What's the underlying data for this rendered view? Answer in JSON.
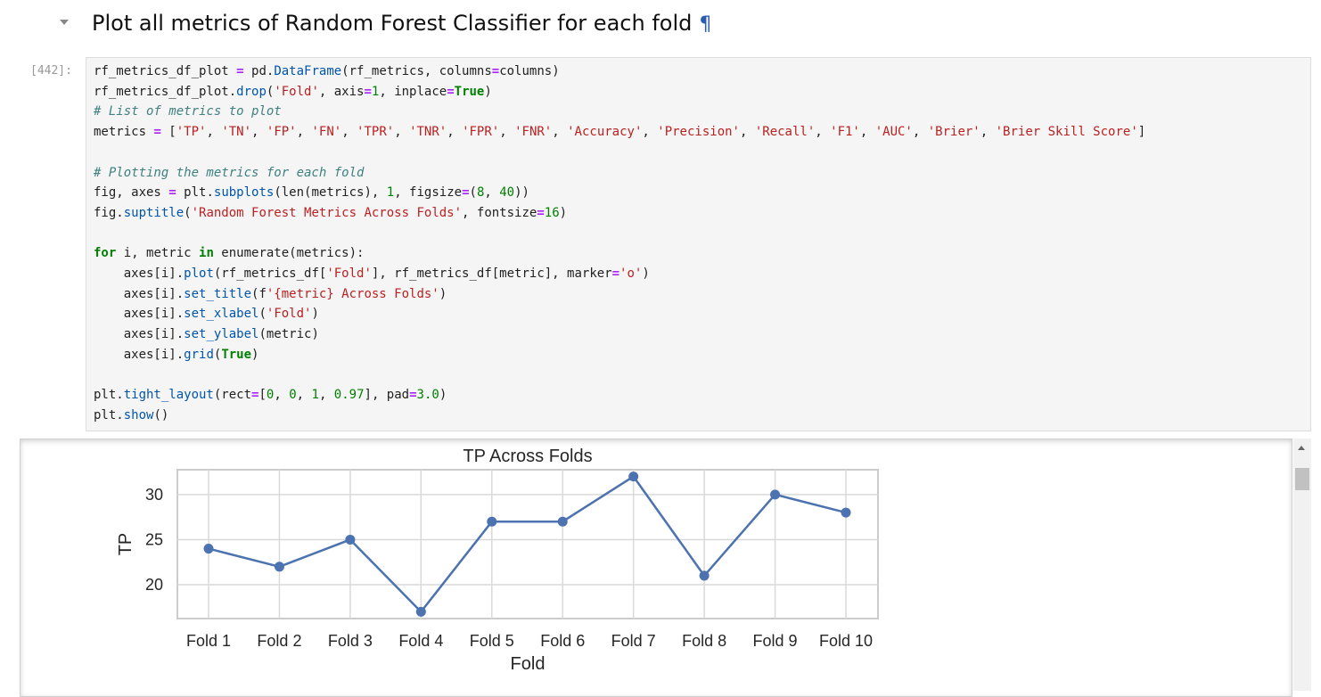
{
  "cell_heading": {
    "title": "Plot all metrics of Random Forest Classifier for each fold",
    "anchor": "¶"
  },
  "code_cell": {
    "prompt": "[442]:",
    "lines": [
      "rf_metrics_df_plot = pd.DataFrame(rf_metrics, columns=columns)",
      "rf_metrics_df_plot.drop('Fold', axis=1, inplace=True)",
      "# List of metrics to plot",
      "metrics = ['TP', 'TN', 'FP', 'FN', 'TPR', 'TNR', 'FPR', 'FNR', 'Accuracy', 'Precision', 'Recall', 'F1', 'AUC', 'Brier', 'Brier Skill Score']",
      "",
      "# Plotting the metrics for each fold",
      "fig, axes = plt.subplots(len(metrics), 1, figsize=(8, 40))",
      "fig.suptitle('Random Forest Metrics Across Folds', fontsize=16)",
      "",
      "for i, metric in enumerate(metrics):",
      "    axes[i].plot(rf_metrics_df['Fold'], rf_metrics_df[metric], marker='o')",
      "    axes[i].set_title(f'{metric} Across Folds')",
      "    axes[i].set_xlabel('Fold')",
      "    axes[i].set_ylabel(metric)",
      "    axes[i].grid(True)",
      "",
      "plt.tight_layout(rect=[0, 0, 1, 0.97], pad=3.0)",
      "plt.show()"
    ]
  },
  "chart_data": {
    "type": "line",
    "title": "TP Across Folds",
    "xlabel": "Fold",
    "ylabel": "TP",
    "categories": [
      "Fold 1",
      "Fold 2",
      "Fold 3",
      "Fold 4",
      "Fold 5",
      "Fold 6",
      "Fold 7",
      "Fold 8",
      "Fold 9",
      "Fold 10"
    ],
    "values": [
      24,
      22,
      25,
      17,
      27,
      27,
      32,
      21,
      30,
      28
    ],
    "yticks": [
      20,
      25,
      30
    ],
    "ylim": [
      16.25,
      32.75
    ],
    "grid": true,
    "marker": "o",
    "color": "#4c72b0"
  },
  "colors": {
    "grid": "#d9d9d9",
    "axes_border": "#cccccc"
  }
}
